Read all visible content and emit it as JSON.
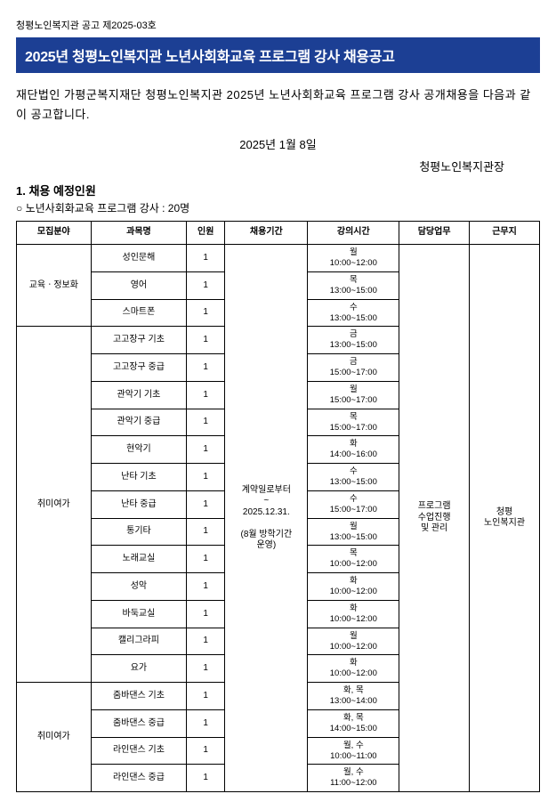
{
  "doc_no": "청평노인복지관 공고 제2025-03호",
  "title": "2025년 청평노인복지관 노년사회화교육 프로그램 강사 채용공고",
  "intro": "재단법인 가평군복지재단 청평노인복지관 2025년 노년사회화교육 프로그램 강사 공개채용을 다음과 같이 공고합니다.",
  "date": "2025년 1월 8일",
  "signature": "청평노인복지관장",
  "section1_heading": "1. 채용 예정인원",
  "section1_sub": "○ 노년사회화교육 프로그램 강사 : 20명",
  "headers": [
    "모집분야",
    "과목명",
    "인원",
    "채용기간",
    "강의시간",
    "담당업무",
    "근무지"
  ],
  "period": "계약일로부터\n~\n2025.12.31.\n\n(8월 방학기간\n운영)",
  "duty": "프로그램\n수업진행\n및 관리",
  "place": "청평\n노인복지관",
  "group1_label": "교육ㆍ정보화",
  "group2_label": "취미여가",
  "group3_label": "취미여가",
  "rows": [
    {
      "course": "성인문해",
      "n": "1",
      "t": "월\n10:00~12:00"
    },
    {
      "course": "영어",
      "n": "1",
      "t": "목\n13:00~15:00"
    },
    {
      "course": "스마트폰",
      "n": "1",
      "t": "수\n13:00~15:00"
    },
    {
      "course": "고고장구 기초",
      "n": "1",
      "t": "금\n13:00~15:00"
    },
    {
      "course": "고고장구 중급",
      "n": "1",
      "t": "금\n15:00~17:00"
    },
    {
      "course": "관악기 기초",
      "n": "1",
      "t": "월\n15:00~17:00"
    },
    {
      "course": "관악기 중급",
      "n": "1",
      "t": "목\n15:00~17:00"
    },
    {
      "course": "현악기",
      "n": "1",
      "t": "화\n14:00~16:00"
    },
    {
      "course": "난타 기초",
      "n": "1",
      "t": "수\n13:00~15:00"
    },
    {
      "course": "난타 중급",
      "n": "1",
      "t": "수\n15:00~17:00"
    },
    {
      "course": "통기타",
      "n": "1",
      "t": "월\n13:00~15:00"
    },
    {
      "course": "노래교실",
      "n": "1",
      "t": "목\n10:00~12:00"
    },
    {
      "course": "성악",
      "n": "1",
      "t": "화\n10:00~12:00"
    },
    {
      "course": "바둑교실",
      "n": "1",
      "t": "화\n10:00~12:00"
    },
    {
      "course": "캘리그라피",
      "n": "1",
      "t": "월\n10:00~12:00"
    },
    {
      "course": "요가",
      "n": "1",
      "t": "화\n10:00~12:00"
    },
    {
      "course": "줌바댄스 기초",
      "n": "1",
      "t": "화, 목\n13:00~14:00"
    },
    {
      "course": "줌바댄스 중급",
      "n": "1",
      "t": "화, 목\n14:00~15:00"
    },
    {
      "course": "라인댄스 기초",
      "n": "1",
      "t": "월, 수\n10:00~11:00"
    },
    {
      "course": "라인댄스 중급",
      "n": "1",
      "t": "월, 수\n11:00~12:00"
    }
  ]
}
